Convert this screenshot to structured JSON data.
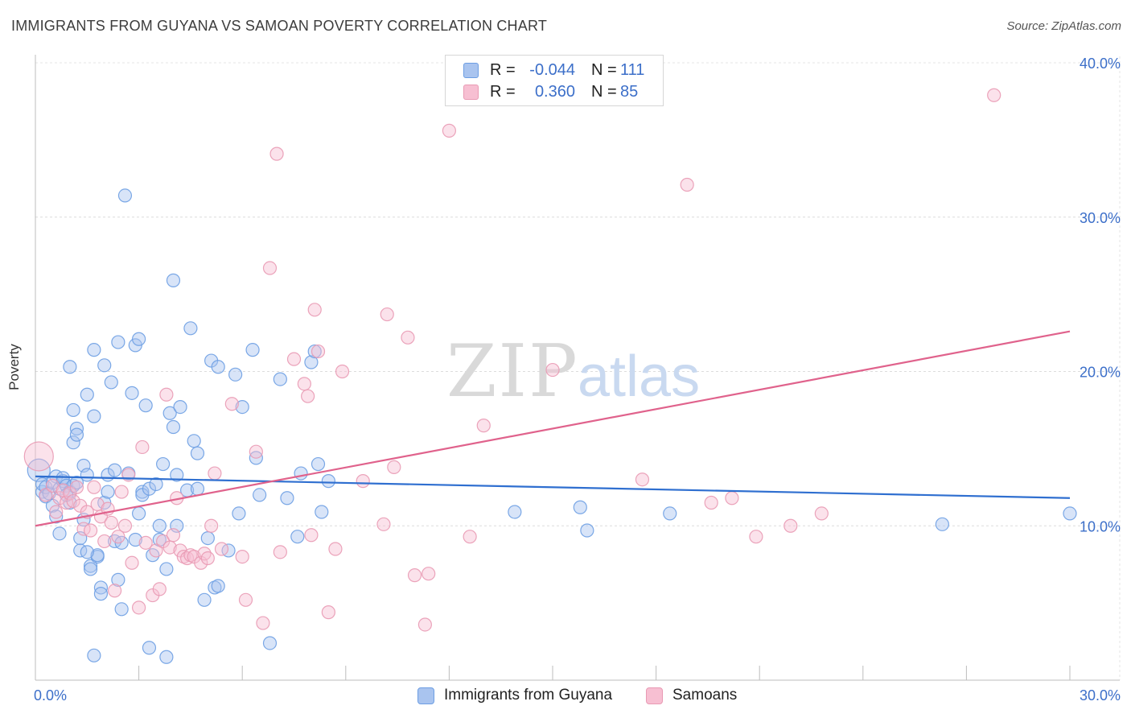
{
  "header": {
    "title": "IMMIGRANTS FROM GUYANA VS SAMOAN POVERTY CORRELATION CHART",
    "source": "Source: ZipAtlas.com"
  },
  "watermark": {
    "zip": "ZIP",
    "atlas": "atlas"
  },
  "legend": {
    "rows": [
      {
        "r_label": "R =",
        "r_value": "-0.044",
        "n_label": "N =",
        "n_value": "111",
        "color": "#a9c4ef",
        "border": "#6d9ee3"
      },
      {
        "r_label": "R =",
        "r_value": "0.360",
        "n_label": "N =",
        "n_value": "85",
        "color": "#f7bfd2",
        "border": "#e99ab4"
      }
    ]
  },
  "bottom_legend": [
    {
      "label": "Immigrants from Guyana",
      "color": "#a9c4ef",
      "border": "#6d9ee3"
    },
    {
      "label": "Samoans",
      "color": "#f7bfd2",
      "border": "#e99ab4"
    }
  ],
  "chart_data": {
    "type": "scatter",
    "title": "IMMIGRANTS FROM GUYANA VS SAMOAN POVERTY CORRELATION CHART",
    "ylabel": "Poverty",
    "xlabel": "",
    "xlim": [
      0,
      30
    ],
    "ylim": [
      0,
      40
    ],
    "x_ticks": [
      {
        "value": 0,
        "label": "0.0%"
      },
      {
        "value": 30,
        "label": "30.0%"
      }
    ],
    "y_ticks": [
      {
        "value": 10,
        "label": "10.0%"
      },
      {
        "value": 20,
        "label": "20.0%"
      },
      {
        "value": 30,
        "label": "30.0%"
      },
      {
        "value": 40,
        "label": "40.0%"
      }
    ],
    "grid": true,
    "series": [
      {
        "name": "Immigrants from Guyana",
        "color": "#6d9ee3",
        "fill": "#a9c4ef",
        "line_color": "#2f6fd0",
        "trend": {
          "x0": 0,
          "y0": 13.2,
          "x1": 30,
          "y1": 11.8
        },
        "points": [
          [
            0.1,
            13.6
          ],
          [
            0.2,
            12.2
          ],
          [
            0.2,
            12.7
          ],
          [
            0.3,
            11.9
          ],
          [
            0.3,
            12.5
          ],
          [
            0.4,
            12.1
          ],
          [
            0.5,
            11.3
          ],
          [
            0.6,
            13.2
          ],
          [
            0.6,
            10.6
          ],
          [
            0.5,
            12.8
          ],
          [
            0.7,
            12.4
          ],
          [
            0.8,
            12.9
          ],
          [
            0.8,
            13.1
          ],
          [
            0.9,
            12.6
          ],
          [
            1.0,
            11.5
          ],
          [
            1.0,
            12.2
          ],
          [
            1.1,
            12.6
          ],
          [
            0.7,
            9.5
          ],
          [
            1.0,
            20.3
          ],
          [
            1.1,
            17.5
          ],
          [
            1.1,
            15.4
          ],
          [
            1.2,
            16.3
          ],
          [
            1.2,
            15.9
          ],
          [
            1.3,
            9.2
          ],
          [
            1.3,
            8.4
          ],
          [
            1.4,
            10.4
          ],
          [
            1.4,
            13.9
          ],
          [
            1.5,
            13.3
          ],
          [
            1.5,
            18.5
          ],
          [
            1.6,
            7.4
          ],
          [
            1.6,
            7.2
          ],
          [
            1.7,
            17.1
          ],
          [
            1.7,
            21.4
          ],
          [
            1.8,
            8.0
          ],
          [
            1.8,
            8.1
          ],
          [
            1.9,
            6.0
          ],
          [
            1.9,
            5.6
          ],
          [
            2.0,
            11.5
          ],
          [
            2.0,
            20.4
          ],
          [
            2.1,
            13.3
          ],
          [
            2.2,
            19.3
          ],
          [
            2.3,
            13.6
          ],
          [
            2.3,
            9.0
          ],
          [
            2.4,
            21.9
          ],
          [
            2.4,
            6.5
          ],
          [
            2.5,
            4.6
          ],
          [
            2.5,
            8.9
          ],
          [
            2.6,
            31.4
          ],
          [
            2.7,
            13.4
          ],
          [
            2.8,
            18.6
          ],
          [
            2.9,
            21.7
          ],
          [
            2.9,
            9.1
          ],
          [
            3.0,
            22.1
          ],
          [
            3.0,
            10.8
          ],
          [
            3.1,
            12.2
          ],
          [
            3.1,
            12.0
          ],
          [
            3.2,
            17.8
          ],
          [
            3.3,
            12.4
          ],
          [
            3.3,
            2.1
          ],
          [
            3.4,
            8.1
          ],
          [
            3.5,
            12.7
          ],
          [
            3.6,
            10.0
          ],
          [
            3.7,
            14.0
          ],
          [
            3.8,
            1.5
          ],
          [
            3.8,
            7.2
          ],
          [
            3.9,
            17.3
          ],
          [
            4.0,
            16.4
          ],
          [
            4.0,
            25.9
          ],
          [
            4.1,
            13.3
          ],
          [
            4.1,
            10.0
          ],
          [
            4.2,
            17.7
          ],
          [
            4.4,
            12.3
          ],
          [
            4.5,
            22.8
          ],
          [
            4.6,
            15.5
          ],
          [
            4.7,
            14.7
          ],
          [
            4.7,
            12.4
          ],
          [
            4.9,
            5.2
          ],
          [
            5.0,
            9.2
          ],
          [
            5.1,
            20.7
          ],
          [
            5.2,
            6.0
          ],
          [
            5.3,
            20.3
          ],
          [
            5.3,
            6.1
          ],
          [
            5.6,
            8.4
          ],
          [
            5.8,
            19.8
          ],
          [
            5.9,
            10.8
          ],
          [
            6.0,
            17.7
          ],
          [
            6.3,
            21.4
          ],
          [
            6.4,
            14.4
          ],
          [
            6.8,
            2.4
          ],
          [
            7.1,
            19.5
          ],
          [
            7.3,
            11.8
          ],
          [
            7.6,
            9.3
          ],
          [
            7.7,
            13.4
          ],
          [
            8.0,
            20.6
          ],
          [
            8.1,
            21.3
          ],
          [
            8.2,
            14.0
          ],
          [
            8.3,
            10.9
          ],
          [
            8.5,
            12.9
          ],
          [
            13.9,
            10.9
          ],
          [
            15.8,
            11.2
          ],
          [
            16.0,
            9.7
          ],
          [
            18.4,
            10.8
          ],
          [
            26.3,
            10.1
          ],
          [
            30.0,
            10.8
          ],
          [
            1.7,
            1.6
          ],
          [
            2.1,
            12.2
          ],
          [
            1.5,
            8.3
          ],
          [
            3.6,
            9.1
          ],
          [
            0.9,
            12.0
          ],
          [
            1.2,
            12.8
          ],
          [
            6.5,
            12.0
          ]
        ],
        "sizes": {
          "default": 8,
          "large": [
            [
              0.1,
              13.6,
              14
            ]
          ]
        }
      },
      {
        "name": "Samoans",
        "color": "#e99ab4",
        "fill": "#f7bfd2",
        "line_color": "#e0628c",
        "trend": {
          "x0": 0,
          "y0": 10.0,
          "x1": 30,
          "y1": 22.6
        },
        "points": [
          [
            0.1,
            14.5
          ],
          [
            0.3,
            12.0
          ],
          [
            0.5,
            12.6
          ],
          [
            0.6,
            10.9
          ],
          [
            0.7,
            11.8
          ],
          [
            0.8,
            12.3
          ],
          [
            0.9,
            11.5
          ],
          [
            1.0,
            12.1
          ],
          [
            1.1,
            11.6
          ],
          [
            1.2,
            12.5
          ],
          [
            1.3,
            11.3
          ],
          [
            1.4,
            9.8
          ],
          [
            1.5,
            10.9
          ],
          [
            1.6,
            9.7
          ],
          [
            1.7,
            12.5
          ],
          [
            1.8,
            11.4
          ],
          [
            1.9,
            10.6
          ],
          [
            2.0,
            9.0
          ],
          [
            2.1,
            11.1
          ],
          [
            2.2,
            10.2
          ],
          [
            2.3,
            5.8
          ],
          [
            2.4,
            9.3
          ],
          [
            2.5,
            12.2
          ],
          [
            2.6,
            10.0
          ],
          [
            2.7,
            13.3
          ],
          [
            2.8,
            7.6
          ],
          [
            3.0,
            4.7
          ],
          [
            3.1,
            15.1
          ],
          [
            3.2,
            8.9
          ],
          [
            3.4,
            5.5
          ],
          [
            3.5,
            8.4
          ],
          [
            3.6,
            5.9
          ],
          [
            3.7,
            9.0
          ],
          [
            3.8,
            18.5
          ],
          [
            3.9,
            8.6
          ],
          [
            4.0,
            9.4
          ],
          [
            4.1,
            11.8
          ],
          [
            4.2,
            8.4
          ],
          [
            4.3,
            8.0
          ],
          [
            4.4,
            7.9
          ],
          [
            4.5,
            8.1
          ],
          [
            4.6,
            8.0
          ],
          [
            4.8,
            7.6
          ],
          [
            4.9,
            8.2
          ],
          [
            5.0,
            7.9
          ],
          [
            5.1,
            10.0
          ],
          [
            5.2,
            13.4
          ],
          [
            5.4,
            8.5
          ],
          [
            5.7,
            17.9
          ],
          [
            6.0,
            8.0
          ],
          [
            6.1,
            5.2
          ],
          [
            6.4,
            14.8
          ],
          [
            6.6,
            3.7
          ],
          [
            6.8,
            26.7
          ],
          [
            7.0,
            34.1
          ],
          [
            7.1,
            8.3
          ],
          [
            7.5,
            20.8
          ],
          [
            7.8,
            19.2
          ],
          [
            7.9,
            18.4
          ],
          [
            8.0,
            9.4
          ],
          [
            8.1,
            24.0
          ],
          [
            8.2,
            21.3
          ],
          [
            8.5,
            4.4
          ],
          [
            8.7,
            8.5
          ],
          [
            8.9,
            20.0
          ],
          [
            9.5,
            12.9
          ],
          [
            10.1,
            10.1
          ],
          [
            10.2,
            23.7
          ],
          [
            10.4,
            13.8
          ],
          [
            10.8,
            22.2
          ],
          [
            11.0,
            6.8
          ],
          [
            11.4,
            6.9
          ],
          [
            11.3,
            3.6
          ],
          [
            12.0,
            35.6
          ],
          [
            12.6,
            9.3
          ],
          [
            13.0,
            16.5
          ],
          [
            15.0,
            20.1
          ],
          [
            17.6,
            13.0
          ],
          [
            18.9,
            32.1
          ],
          [
            19.6,
            11.5
          ],
          [
            20.2,
            11.8
          ],
          [
            20.9,
            9.3
          ],
          [
            21.9,
            10.0
          ],
          [
            22.8,
            10.8
          ],
          [
            27.8,
            37.9
          ]
        ],
        "sizes": {
          "default": 8,
          "large": [
            [
              0.1,
              14.5,
              18
            ]
          ]
        }
      }
    ]
  }
}
